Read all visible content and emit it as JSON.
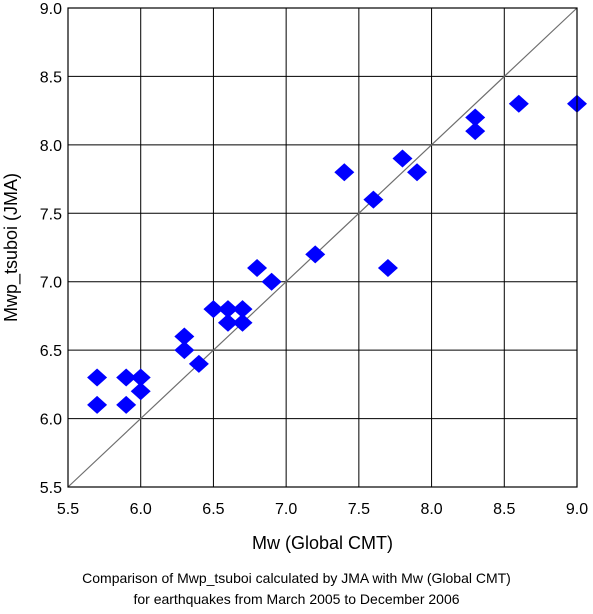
{
  "chart_data": {
    "type": "scatter",
    "xlabel": "Mw (Global CMT)",
    "ylabel": "Mwp_tsuboi (JMA)",
    "xlim": [
      5.5,
      9.0
    ],
    "ylim": [
      5.5,
      9.0
    ],
    "x_ticks": [
      "5.5",
      "6.0",
      "6.5",
      "7.0",
      "7.5",
      "8.0",
      "8.5",
      "9.0"
    ],
    "y_ticks": [
      "5.5",
      "6.0",
      "6.5",
      "7.0",
      "7.5",
      "8.0",
      "8.5",
      "9.0"
    ],
    "grid": true,
    "reference_line": "y = x",
    "marker": "diamond",
    "marker_color": "#0000ff",
    "points": [
      {
        "x": 5.7,
        "y": 6.3
      },
      {
        "x": 5.7,
        "y": 6.1
      },
      {
        "x": 5.9,
        "y": 6.3
      },
      {
        "x": 5.9,
        "y": 6.1
      },
      {
        "x": 6.0,
        "y": 6.3
      },
      {
        "x": 6.0,
        "y": 6.2
      },
      {
        "x": 6.3,
        "y": 6.6
      },
      {
        "x": 6.3,
        "y": 6.5
      },
      {
        "x": 6.4,
        "y": 6.4
      },
      {
        "x": 6.5,
        "y": 6.8
      },
      {
        "x": 6.6,
        "y": 6.8
      },
      {
        "x": 6.6,
        "y": 6.7
      },
      {
        "x": 6.7,
        "y": 6.8
      },
      {
        "x": 6.7,
        "y": 6.7
      },
      {
        "x": 6.8,
        "y": 7.1
      },
      {
        "x": 6.9,
        "y": 7.0
      },
      {
        "x": 7.2,
        "y": 7.2
      },
      {
        "x": 7.4,
        "y": 7.8
      },
      {
        "x": 7.6,
        "y": 7.6
      },
      {
        "x": 7.7,
        "y": 7.1
      },
      {
        "x": 7.8,
        "y": 7.9
      },
      {
        "x": 7.9,
        "y": 7.8
      },
      {
        "x": 8.3,
        "y": 8.2
      },
      {
        "x": 8.3,
        "y": 8.1
      },
      {
        "x": 8.6,
        "y": 8.3
      },
      {
        "x": 9.0,
        "y": 8.3
      }
    ]
  },
  "caption": {
    "line1": "Comparison of Mwp_tsuboi calculated by JMA with Mw (Global CMT)",
    "line2": "for earthquakes from March 2005 to December 2006"
  }
}
